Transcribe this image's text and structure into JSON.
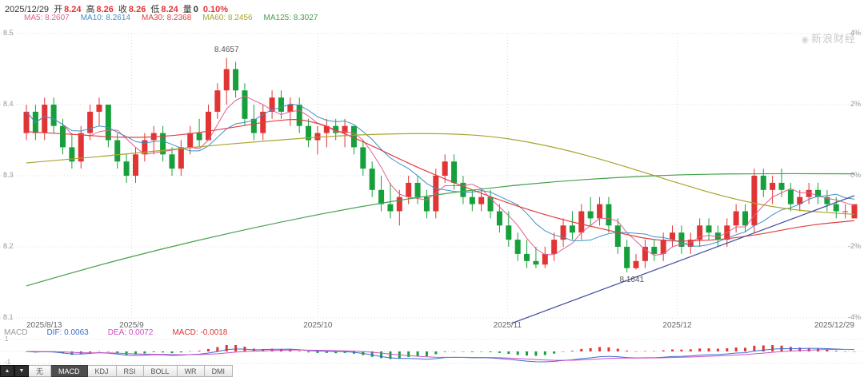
{
  "header": {
    "date": "2025/12/29",
    "date_color": "#333333",
    "fields": [
      {
        "label": "开",
        "value": "8.24",
        "color": "#e13434"
      },
      {
        "label": "高",
        "value": "8.26",
        "color": "#e13434"
      },
      {
        "label": "收",
        "value": "8.26",
        "color": "#e13434"
      },
      {
        "label": "低",
        "value": "8.24",
        "color": "#e13434"
      },
      {
        "label": "量",
        "value": "0",
        "color": "#333333"
      }
    ],
    "change": "0.10%",
    "change_color": "#e13434"
  },
  "watermark": "新浪财经",
  "ma_legend": [
    {
      "name": "MA5",
      "value": "8.2607",
      "color": "#e0608e"
    },
    {
      "name": "MA10",
      "value": "8.2614",
      "color": "#3f8fc8"
    },
    {
      "name": "MA30",
      "value": "8.2368",
      "color": "#e14040"
    },
    {
      "name": "MA60",
      "value": "8.2456",
      "color": "#a8a42e"
    },
    {
      "name": "MA125",
      "value": "8.3027",
      "color": "#44a04c"
    }
  ],
  "chart_data": {
    "type": "candlestick",
    "title": "",
    "ylim": [
      8.1,
      8.5
    ],
    "up_color": "#e13434",
    "down_color": "#16a03c",
    "grid_color": "#d8d8d8",
    "y_axis_left": [
      {
        "text": "8.5",
        "value": 8.5
      },
      {
        "text": "8.4",
        "value": 8.4
      },
      {
        "text": "8.3",
        "value": 8.3
      },
      {
        "text": "8.2",
        "value": 8.2
      },
      {
        "text": "8.1",
        "value": 8.1
      }
    ],
    "y_axis_right": [
      "4%",
      "2%",
      "0%",
      "-2%",
      "-4%"
    ],
    "x_axis": [
      {
        "text": "2025/8/13",
        "x": 0.0
      },
      {
        "text": "2025/9",
        "x": 0.127
      },
      {
        "text": "2025/10",
        "x": 0.352
      },
      {
        "text": "2025/11",
        "x": 0.581
      },
      {
        "text": "2025/12",
        "x": 0.786
      },
      {
        "text": "2025/12/29",
        "x": 1.0
      }
    ],
    "annotations": {
      "high": "8.4657",
      "low": "8.1641"
    },
    "candles": [
      [
        8.36,
        8.4,
        8.35,
        8.39
      ],
      [
        8.39,
        8.4,
        8.35,
        8.36
      ],
      [
        8.36,
        8.41,
        8.35,
        8.4
      ],
      [
        8.4,
        8.41,
        8.36,
        8.37
      ],
      [
        8.37,
        8.38,
        8.33,
        8.34
      ],
      [
        8.34,
        8.36,
        8.31,
        8.32
      ],
      [
        8.32,
        8.37,
        8.31,
        8.36
      ],
      [
        8.36,
        8.4,
        8.35,
        8.39
      ],
      [
        8.39,
        8.41,
        8.37,
        8.4
      ],
      [
        8.4,
        8.4,
        8.34,
        8.35
      ],
      [
        8.35,
        8.36,
        8.31,
        8.32
      ],
      [
        8.32,
        8.33,
        8.29,
        8.3
      ],
      [
        8.3,
        8.34,
        8.29,
        8.33
      ],
      [
        8.33,
        8.36,
        8.32,
        8.35
      ],
      [
        8.35,
        8.37,
        8.33,
        8.36
      ],
      [
        8.36,
        8.37,
        8.32,
        8.33
      ],
      [
        8.33,
        8.34,
        8.3,
        8.31
      ],
      [
        8.31,
        8.35,
        8.3,
        8.34
      ],
      [
        8.34,
        8.37,
        8.33,
        8.36
      ],
      [
        8.36,
        8.38,
        8.34,
        8.35
      ],
      [
        8.35,
        8.4,
        8.35,
        8.39
      ],
      [
        8.39,
        8.43,
        8.38,
        8.42
      ],
      [
        8.42,
        8.4657,
        8.4,
        8.45
      ],
      [
        8.45,
        8.46,
        8.41,
        8.42
      ],
      [
        8.42,
        8.43,
        8.37,
        8.38
      ],
      [
        8.38,
        8.4,
        8.35,
        8.36
      ],
      [
        8.36,
        8.4,
        8.35,
        8.39
      ],
      [
        8.39,
        8.42,
        8.38,
        8.41
      ],
      [
        8.41,
        8.42,
        8.38,
        8.39
      ],
      [
        8.39,
        8.41,
        8.37,
        8.4
      ],
      [
        8.4,
        8.41,
        8.36,
        8.37
      ],
      [
        8.37,
        8.38,
        8.34,
        8.35
      ],
      [
        8.35,
        8.37,
        8.33,
        8.36
      ],
      [
        8.36,
        8.38,
        8.34,
        8.37
      ],
      [
        8.37,
        8.38,
        8.35,
        8.36
      ],
      [
        8.36,
        8.38,
        8.34,
        8.37
      ],
      [
        8.37,
        8.37,
        8.33,
        8.34
      ],
      [
        8.34,
        8.35,
        8.3,
        8.31
      ],
      [
        8.31,
        8.32,
        8.27,
        8.28
      ],
      [
        8.28,
        8.3,
        8.25,
        8.26
      ],
      [
        8.26,
        8.29,
        8.24,
        8.25
      ],
      [
        8.25,
        8.28,
        8.23,
        8.27
      ],
      [
        8.27,
        8.3,
        8.26,
        8.29
      ],
      [
        8.29,
        8.3,
        8.26,
        8.27
      ],
      [
        8.27,
        8.28,
        8.24,
        8.25
      ],
      [
        8.25,
        8.31,
        8.24,
        8.3
      ],
      [
        8.3,
        8.33,
        8.29,
        8.32
      ],
      [
        8.32,
        8.33,
        8.28,
        8.29
      ],
      [
        8.29,
        8.3,
        8.26,
        8.27
      ],
      [
        8.27,
        8.28,
        8.25,
        8.26
      ],
      [
        8.26,
        8.28,
        8.25,
        8.27
      ],
      [
        8.27,
        8.28,
        8.24,
        8.25
      ],
      [
        8.25,
        8.26,
        8.22,
        8.23
      ],
      [
        8.23,
        8.25,
        8.2,
        8.21
      ],
      [
        8.21,
        8.22,
        8.18,
        8.19
      ],
      [
        8.19,
        8.21,
        8.17,
        8.18
      ],
      [
        8.18,
        8.2,
        8.17,
        8.175
      ],
      [
        8.175,
        8.2,
        8.17,
        8.19
      ],
      [
        8.19,
        8.22,
        8.18,
        8.21
      ],
      [
        8.21,
        8.24,
        8.2,
        8.23
      ],
      [
        8.23,
        8.25,
        8.21,
        8.22
      ],
      [
        8.22,
        8.26,
        8.21,
        8.25
      ],
      [
        8.25,
        8.27,
        8.23,
        8.24
      ],
      [
        8.24,
        8.27,
        8.23,
        8.26
      ],
      [
        8.26,
        8.27,
        8.22,
        8.23
      ],
      [
        8.23,
        8.24,
        8.19,
        8.2
      ],
      [
        8.2,
        8.21,
        8.1641,
        8.17
      ],
      [
        8.17,
        8.19,
        8.168,
        8.18
      ],
      [
        8.18,
        8.21,
        8.17,
        8.2
      ],
      [
        8.2,
        8.21,
        8.18,
        8.19
      ],
      [
        8.19,
        8.22,
        8.18,
        8.21
      ],
      [
        8.21,
        8.23,
        8.2,
        8.22
      ],
      [
        8.22,
        8.23,
        8.19,
        8.2
      ],
      [
        8.2,
        8.22,
        8.19,
        8.21
      ],
      [
        8.21,
        8.24,
        8.2,
        8.23
      ],
      [
        8.23,
        8.24,
        8.21,
        8.22
      ],
      [
        8.22,
        8.23,
        8.2,
        8.21
      ],
      [
        8.21,
        8.24,
        8.2,
        8.23
      ],
      [
        8.23,
        8.26,
        8.22,
        8.25
      ],
      [
        8.25,
        8.26,
        8.22,
        8.23
      ],
      [
        8.23,
        8.31,
        8.22,
        8.3
      ],
      [
        8.3,
        8.31,
        8.27,
        8.28
      ],
      [
        8.28,
        8.3,
        8.26,
        8.29
      ],
      [
        8.29,
        8.31,
        8.27,
        8.28
      ],
      [
        8.28,
        8.29,
        8.25,
        8.26
      ],
      [
        8.26,
        8.28,
        8.25,
        8.27
      ],
      [
        8.27,
        8.29,
        8.26,
        8.28
      ],
      [
        8.28,
        8.29,
        8.26,
        8.27
      ],
      [
        8.27,
        8.28,
        8.25,
        8.26
      ],
      [
        8.26,
        8.27,
        8.24,
        8.25
      ],
      [
        8.25,
        8.26,
        8.24,
        8.25
      ],
      [
        8.24,
        8.26,
        8.24,
        8.26
      ]
    ],
    "computed_ma": [
      {
        "name": "MA5",
        "window": 5,
        "color": "#e0608e"
      },
      {
        "name": "MA10",
        "window": 10,
        "color": "#3f8fc8"
      }
    ],
    "overlays": [
      {
        "name": "MA30",
        "color": "#e14040",
        "points": [
          [
            0,
            8.362
          ],
          [
            0.06,
            8.358
          ],
          [
            0.12,
            8.353
          ],
          [
            0.18,
            8.356
          ],
          [
            0.24,
            8.366
          ],
          [
            0.3,
            8.378
          ],
          [
            0.34,
            8.38
          ],
          [
            0.4,
            8.352
          ],
          [
            0.46,
            8.318
          ],
          [
            0.52,
            8.288
          ],
          [
            0.58,
            8.262
          ],
          [
            0.64,
            8.24
          ],
          [
            0.7,
            8.224
          ],
          [
            0.76,
            8.208
          ],
          [
            0.82,
            8.208
          ],
          [
            0.88,
            8.216
          ],
          [
            0.94,
            8.23
          ],
          [
            1,
            8.2368
          ]
        ]
      },
      {
        "name": "MA60",
        "color": "#a8a42e",
        "points": [
          [
            0,
            8.318
          ],
          [
            0.1,
            8.328
          ],
          [
            0.2,
            8.34
          ],
          [
            0.3,
            8.35
          ],
          [
            0.4,
            8.358
          ],
          [
            0.5,
            8.36
          ],
          [
            0.57,
            8.355
          ],
          [
            0.64,
            8.34
          ],
          [
            0.71,
            8.318
          ],
          [
            0.78,
            8.292
          ],
          [
            0.85,
            8.268
          ],
          [
            0.92,
            8.252
          ],
          [
            1,
            8.2456
          ]
        ]
      },
      {
        "name": "MA125",
        "color": "#44a04c",
        "points": [
          [
            0,
            8.145
          ],
          [
            0.08,
            8.172
          ],
          [
            0.16,
            8.196
          ],
          [
            0.24,
            8.218
          ],
          [
            0.32,
            8.238
          ],
          [
            0.4,
            8.256
          ],
          [
            0.48,
            8.271
          ],
          [
            0.56,
            8.283
          ],
          [
            0.64,
            8.292
          ],
          [
            0.72,
            8.298
          ],
          [
            0.8,
            8.302
          ],
          [
            0.9,
            8.303
          ],
          [
            1,
            8.3027
          ]
        ]
      },
      {
        "name": "trendline",
        "color": "#3a4898",
        "points": [
          [
            0.5,
            8.055
          ],
          [
            1,
            8.272
          ]
        ]
      }
    ]
  },
  "macd": {
    "label": "MACD",
    "items": [
      {
        "name": "DIF",
        "value": "0.0063",
        "color": "#3c6cd0"
      },
      {
        "name": "DEA",
        "value": "0.0072",
        "color": "#cc4fc2"
      },
      {
        "name": "MACD",
        "value": "-0.0018",
        "color": "#e13434"
      }
    ],
    "axis_top": "1",
    "axis_bottom": "-1"
  },
  "tabs": {
    "arrows": [
      "▲",
      "▼"
    ],
    "items": [
      "无",
      "MACD",
      "KDJ",
      "RSI",
      "BOLL",
      "WR",
      "DMI"
    ],
    "active": "MACD"
  }
}
